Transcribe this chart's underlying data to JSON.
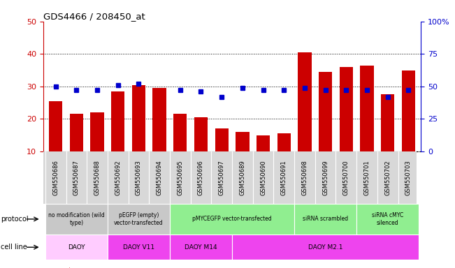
{
  "title": "GDS4466 / 208450_at",
  "samples": [
    "GSM550686",
    "GSM550687",
    "GSM550688",
    "GSM550692",
    "GSM550693",
    "GSM550694",
    "GSM550695",
    "GSM550696",
    "GSM550697",
    "GSM550689",
    "GSM550690",
    "GSM550691",
    "GSM550698",
    "GSM550699",
    "GSM550700",
    "GSM550701",
    "GSM550702",
    "GSM550703"
  ],
  "counts": [
    25.5,
    21.5,
    22.0,
    28.5,
    30.5,
    29.5,
    21.5,
    20.5,
    17.0,
    16.0,
    15.0,
    15.5,
    40.5,
    34.5,
    36.0,
    36.5,
    27.5,
    35.0
  ],
  "percentiles_pct": [
    50,
    47,
    47,
    51,
    52,
    null,
    47,
    46,
    42,
    49,
    47,
    47,
    49,
    47,
    47,
    47,
    42,
    47
  ],
  "ylim_left": [
    10,
    50
  ],
  "ylim_right": [
    0,
    100
  ],
  "yticks_left": [
    10,
    20,
    30,
    40,
    50
  ],
  "yticks_right": [
    0,
    25,
    50,
    75,
    100
  ],
  "ytick_labels_right": [
    "0",
    "25",
    "50",
    "75",
    "100%"
  ],
  "bar_color": "#cc0000",
  "dot_color": "#0000cc",
  "protocol_groups": [
    {
      "label": "no modification (wild\ntype)",
      "start": 0,
      "end": 3,
      "color": "#c8c8c8"
    },
    {
      "label": "pEGFP (empty)\nvector-transfected",
      "start": 3,
      "end": 6,
      "color": "#c8c8c8"
    },
    {
      "label": "pMYCEGFP vector-transfected",
      "start": 6,
      "end": 12,
      "color": "#90ee90"
    },
    {
      "label": "siRNA scrambled",
      "start": 12,
      "end": 15,
      "color": "#90ee90"
    },
    {
      "label": "siRNA cMYC\nsilenced",
      "start": 15,
      "end": 18,
      "color": "#90ee90"
    }
  ],
  "cellline_groups": [
    {
      "label": "DAOY",
      "start": 0,
      "end": 3,
      "color": "#ffccff"
    },
    {
      "label": "DAOY V11",
      "start": 3,
      "end": 6,
      "color": "#ee44ee"
    },
    {
      "label": "DAOY M14",
      "start": 6,
      "end": 9,
      "color": "#ee44ee"
    },
    {
      "label": "DAOY M2.1",
      "start": 9,
      "end": 18,
      "color": "#ee44ee"
    }
  ],
  "left_axis_color": "#cc0000",
  "right_axis_color": "#0000cc",
  "sample_bg_color": "#d8d8d8",
  "plot_bg": "#ffffff"
}
